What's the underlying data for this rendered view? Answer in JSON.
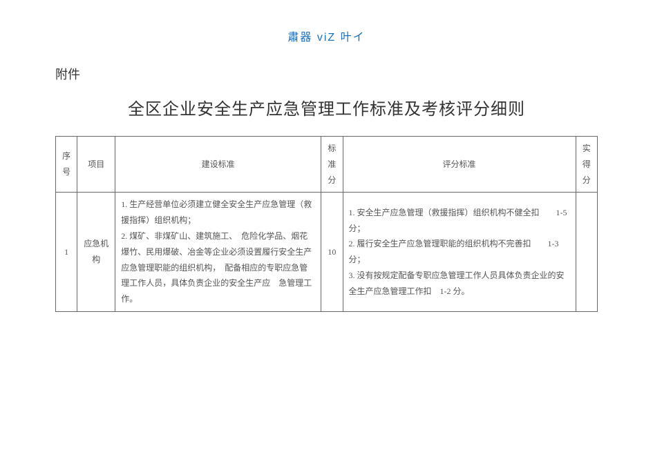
{
  "header_brand": "肅器 viZ 叶イ",
  "attachment_label": "附件",
  "doc_title": "全区企业安全生产应急管理工作标准及考核评分细则",
  "colors": {
    "brand_text": "#1a6fb8",
    "body_text": "#333333",
    "cell_text": "#555555",
    "border": "#666666",
    "background": "#ffffff"
  },
  "typography": {
    "brand_fontsize": 16,
    "attachment_fontsize": 18,
    "title_fontsize": 24,
    "table_fontsize": 12,
    "line_height": 1.9
  },
  "table": {
    "columns": [
      {
        "key": "seq",
        "label": "序号",
        "width_pct": 4,
        "align": "center"
      },
      {
        "key": "item",
        "label": "项目",
        "width_pct": 7,
        "align": "center"
      },
      {
        "key": "build",
        "label": "建设标准",
        "width_pct": 38,
        "align": "center"
      },
      {
        "key": "score",
        "label": "标准分",
        "width_pct": 4,
        "align": "center"
      },
      {
        "key": "eval",
        "label": "评分标准",
        "width_pct": 43,
        "align": "center"
      },
      {
        "key": "actual",
        "label": "实得分",
        "width_pct": 4,
        "align": "center"
      }
    ],
    "rows": [
      {
        "seq": "1",
        "item": "应急机构",
        "build": [
          "1. 生产经营单位必须建立健全安全生产应急管理（救援指挥）组织机构；",
          "2. 煤矿、非煤矿山、建筑施工、　危险化学品、烟花爆竹、民用爆破、冶金等企业必须设置履行安全生产应急管理职能的组织机构，　配备相应的专职应急管理工作人员，具体负责企业的安全生产应　急管理工作。"
        ],
        "score": "10",
        "eval": [
          "1. 安全生产应急管理（救援指挥）组织机构不健全扣　　1-5分；",
          "2. 履行安全生产应急管理职能的组织机构不完善扣　　1-3 分；",
          "3. 没有按规定配备专职应急管理工作人员具体负责企业的安全生产应急管理工作扣　1-2 分。"
        ],
        "actual": ""
      }
    ]
  }
}
